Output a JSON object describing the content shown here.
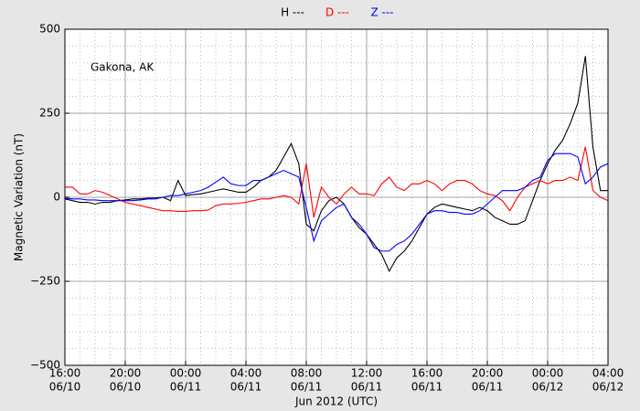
{
  "chart_data": {
    "type": "line",
    "legend": [
      {
        "series": 0
      },
      {
        "series": 1
      },
      {
        "series": 2
      }
    ],
    "annotation": "Gakona, AK",
    "y_label": "Magnetic Variation (nT)",
    "x_label": "Jun 2012 (UTC)",
    "grid": true,
    "minor_grid": true,
    "xlim": [
      "2012-06-10T16:00",
      "2012-06-12T04:00"
    ],
    "xticks": [
      {
        "value": "2012-06-10T16:00",
        "label": [
          "16:00",
          "06/10"
        ]
      },
      {
        "value": "2012-06-10T20:00",
        "label": [
          "20:00",
          "06/10"
        ]
      },
      {
        "value": "2012-06-11T00:00",
        "label": [
          "00:00",
          "06/11"
        ]
      },
      {
        "value": "2012-06-11T04:00",
        "label": [
          "04:00",
          "06/11"
        ]
      },
      {
        "value": "2012-06-11T08:00",
        "label": [
          "08:00",
          "06/11"
        ]
      },
      {
        "value": "2012-06-11T12:00",
        "label": [
          "12:00",
          "06/11"
        ]
      },
      {
        "value": "2012-06-11T16:00",
        "label": [
          "16:00",
          "06/11"
        ]
      },
      {
        "value": "2012-06-11T20:00",
        "label": [
          "20:00",
          "06/11"
        ]
      },
      {
        "value": "2012-06-12T00:00",
        "label": [
          "00:00",
          "06/12"
        ]
      },
      {
        "value": "2012-06-12T04:00",
        "label": [
          "04:00",
          "06/12"
        ]
      }
    ],
    "ylim": [
      -500,
      500
    ],
    "yticks": [
      {
        "value": -500,
        "label": "−500"
      },
      {
        "value": -250,
        "label": "−250"
      },
      0,
      250,
      500
    ],
    "x": [
      "2012-06-10T16:00",
      "2012-06-10T16:30",
      "2012-06-10T17:00",
      "2012-06-10T17:30",
      "2012-06-10T18:00",
      "2012-06-10T18:30",
      "2012-06-10T19:00",
      "2012-06-10T19:30",
      "2012-06-10T20:00",
      "2012-06-10T20:30",
      "2012-06-10T21:00",
      "2012-06-10T21:30",
      "2012-06-10T22:00",
      "2012-06-10T22:30",
      "2012-06-10T23:00",
      "2012-06-10T23:30",
      "2012-06-11T00:00",
      "2012-06-11T00:30",
      "2012-06-11T01:00",
      "2012-06-11T01:30",
      "2012-06-11T02:00",
      "2012-06-11T02:30",
      "2012-06-11T03:00",
      "2012-06-11T03:30",
      "2012-06-11T04:00",
      "2012-06-11T04:30",
      "2012-06-11T05:00",
      "2012-06-11T05:30",
      "2012-06-11T06:00",
      "2012-06-11T06:30",
      "2012-06-11T07:00",
      "2012-06-11T07:30",
      "2012-06-11T08:00",
      "2012-06-11T08:30",
      "2012-06-11T09:00",
      "2012-06-11T09:30",
      "2012-06-11T10:00",
      "2012-06-11T10:30",
      "2012-06-11T11:00",
      "2012-06-11T11:30",
      "2012-06-11T12:00",
      "2012-06-11T12:30",
      "2012-06-11T13:00",
      "2012-06-11T13:30",
      "2012-06-11T14:00",
      "2012-06-11T14:30",
      "2012-06-11T15:00",
      "2012-06-11T15:30",
      "2012-06-11T16:00",
      "2012-06-11T16:30",
      "2012-06-11T17:00",
      "2012-06-11T17:30",
      "2012-06-11T18:00",
      "2012-06-11T18:30",
      "2012-06-11T19:00",
      "2012-06-11T19:30",
      "2012-06-11T20:00",
      "2012-06-11T20:30",
      "2012-06-11T21:00",
      "2012-06-11T21:30",
      "2012-06-11T22:00",
      "2012-06-11T22:30",
      "2012-06-11T23:00",
      "2012-06-11T23:30",
      "2012-06-12T00:00",
      "2012-06-12T00:30",
      "2012-06-12T01:00",
      "2012-06-12T01:30",
      "2012-06-12T02:00",
      "2012-06-12T02:30",
      "2012-06-12T03:00",
      "2012-06-12T03:30",
      "2012-06-12T04:00"
    ],
    "series": [
      {
        "name": "H ---",
        "color": "#000000",
        "values": [
          -5,
          -10,
          -15,
          -15,
          -20,
          -15,
          -15,
          -10,
          -8,
          -5,
          -5,
          -3,
          -2,
          0,
          -10,
          50,
          5,
          8,
          10,
          15,
          20,
          25,
          20,
          15,
          15,
          30,
          50,
          60,
          80,
          120,
          160,
          100,
          -80,
          -100,
          -40,
          -10,
          0,
          -20,
          -60,
          -90,
          -110,
          -140,
          -170,
          -220,
          -180,
          -160,
          -130,
          -90,
          -50,
          -30,
          -20,
          -25,
          -30,
          -35,
          -40,
          -30,
          -40,
          -60,
          -70,
          -80,
          -80,
          -70,
          -10,
          50,
          100,
          140,
          170,
          220,
          280,
          420,
          150,
          20,
          20
        ]
      },
      {
        "name": "D ---",
        "color": "#ff0000",
        "values": [
          30,
          30,
          10,
          10,
          20,
          15,
          5,
          -5,
          -15,
          -20,
          -25,
          -30,
          -35,
          -40,
          -40,
          -42,
          -42,
          -40,
          -40,
          -38,
          -25,
          -20,
          -20,
          -18,
          -15,
          -10,
          -5,
          -5,
          0,
          5,
          0,
          -20,
          100,
          -60,
          30,
          0,
          -20,
          10,
          30,
          10,
          10,
          5,
          40,
          60,
          30,
          20,
          40,
          40,
          50,
          40,
          20,
          40,
          50,
          50,
          40,
          20,
          10,
          5,
          -10,
          -40,
          0,
          30,
          40,
          50,
          40,
          50,
          50,
          60,
          50,
          150,
          20,
          0,
          -10
        ]
      },
      {
        "name": "Z ---",
        "color": "#0000ff",
        "values": [
          -3,
          -5,
          -5,
          -8,
          -8,
          -10,
          -10,
          -10,
          -10,
          -10,
          -8,
          -5,
          -5,
          0,
          5,
          5,
          10,
          15,
          20,
          30,
          45,
          60,
          40,
          35,
          35,
          50,
          50,
          60,
          70,
          80,
          70,
          60,
          -30,
          -130,
          -70,
          -50,
          -30,
          -20,
          -60,
          -80,
          -110,
          -150,
          -160,
          -160,
          -140,
          -130,
          -110,
          -80,
          -50,
          -40,
          -40,
          -45,
          -45,
          -50,
          -50,
          -40,
          -20,
          0,
          20,
          20,
          20,
          30,
          50,
          60,
          110,
          130,
          130,
          130,
          120,
          40,
          60,
          90,
          100
        ]
      }
    ]
  }
}
